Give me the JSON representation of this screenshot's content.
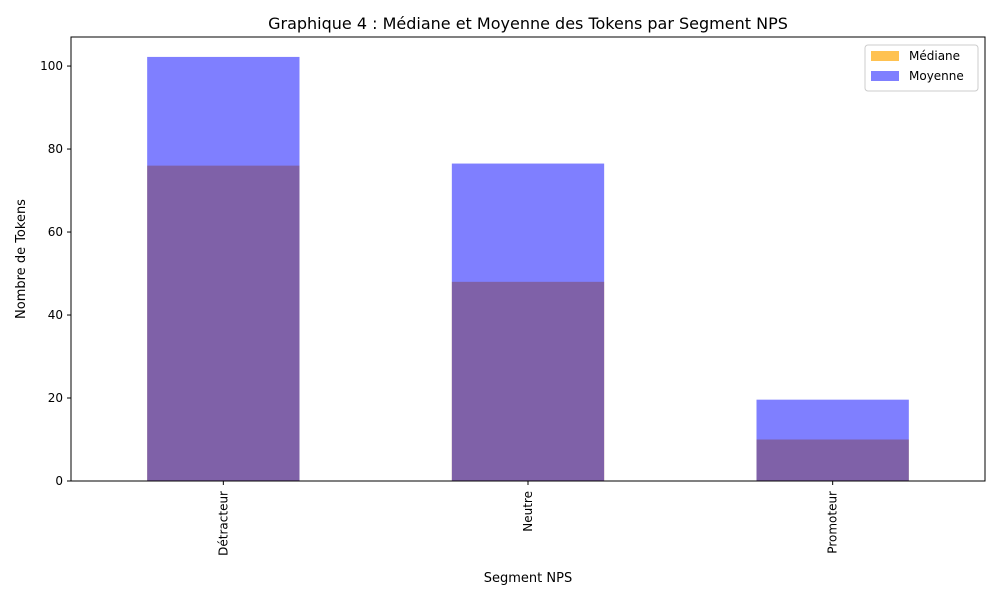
{
  "chart_data": {
    "type": "bar",
    "title": "Graphique 4 : Médiane et Moyenne des Tokens par Segment NPS",
    "xlabel": "Segment NPS",
    "ylabel": "Nombre de Tokens",
    "categories": [
      "Détracteur",
      "Neutre",
      "Promoteur"
    ],
    "series": [
      {
        "name": "Médiane",
        "values": [
          76,
          48,
          10
        ],
        "color": "#FFB732",
        "opacity": 0.85
      },
      {
        "name": "Moyenne",
        "values": [
          102.2,
          76.5,
          19.6
        ],
        "color": "#0000FF",
        "opacity": 0.5
      }
    ],
    "ylim": [
      0,
      107
    ],
    "yticks": [
      0,
      20,
      40,
      60,
      80,
      100
    ],
    "grid": false,
    "legend_position": "top-right",
    "overlay": true
  }
}
